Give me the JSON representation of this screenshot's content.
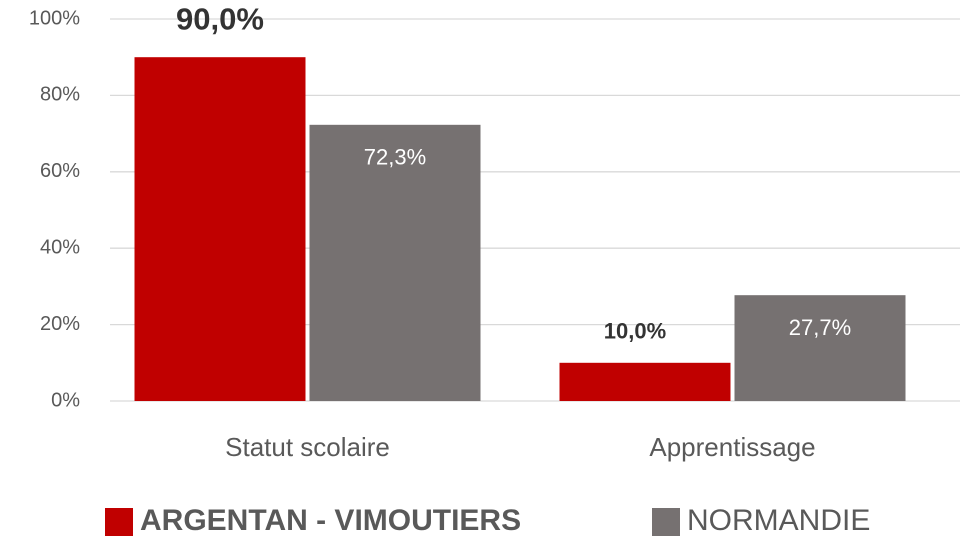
{
  "chart_data": {
    "type": "bar",
    "categories": [
      "Statut scolaire",
      "Apprentissage"
    ],
    "series": [
      {
        "name": "ARGENTAN - VIMOUTIERS",
        "color": "#c00000",
        "values": [
          90,
          10
        ],
        "value_labels": [
          "90,0%",
          "10,0%"
        ]
      },
      {
        "name": "NORMANDIE",
        "color": "#767171",
        "values": [
          72.3,
          27.7
        ],
        "value_labels": [
          "72,3%",
          "27,7%"
        ]
      }
    ],
    "ylim": [
      0,
      100
    ],
    "yticks": [
      {
        "value": 0,
        "label": "0%"
      },
      {
        "value": 20,
        "label": "20%"
      },
      {
        "value": 40,
        "label": "40%"
      },
      {
        "value": 60,
        "label": "60%"
      },
      {
        "value": 80,
        "label": "80%"
      },
      {
        "value": 100,
        "label": "100%"
      }
    ],
    "grid": true,
    "legend": "bottom"
  }
}
